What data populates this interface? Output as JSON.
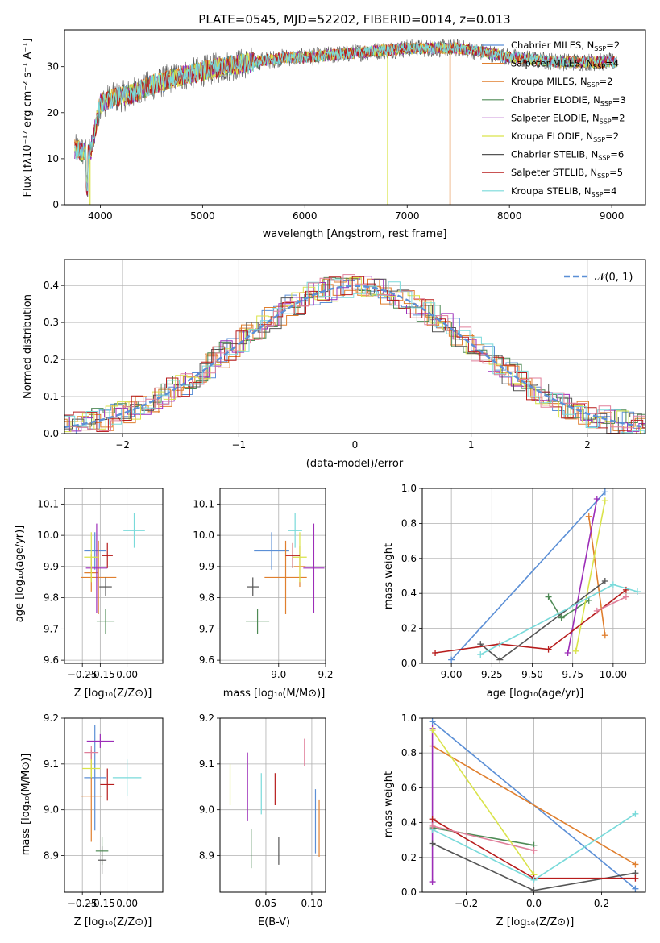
{
  "title": "PLATE=0545, MJD=52202, FIBERID=0014, z=0.013",
  "legend": [
    {
      "label": "Chabrier MILES, N",
      "sub": "SSP",
      "val": "=2",
      "color": "#5b8fd6"
    },
    {
      "label": "Salpeter MILES, N",
      "sub": "SSP",
      "val": "=4",
      "color": "#e07f2e"
    },
    {
      "label": "Kroupa MILES, N",
      "sub": "SSP",
      "val": "=2",
      "color": "#e07f2e"
    },
    {
      "label": "Chabrier ELODIE, N",
      "sub": "SSP",
      "val": "=3",
      "color": "#4e8a55"
    },
    {
      "label": "Salpeter ELODIE, N",
      "sub": "SSP",
      "val": "=2",
      "color": "#9c2db8"
    },
    {
      "label": "Kroupa ELODIE, N",
      "sub": "SSP",
      "val": "=2",
      "color": "#d9e34a"
    },
    {
      "label": "Chabrier STELIB, N",
      "sub": "SSP",
      "val": "=6",
      "color": "#555555"
    },
    {
      "label": "Salpeter STELIB, N",
      "sub": "SSP",
      "val": "=5",
      "color": "#b71c1c"
    },
    {
      "label": "Kroupa STELIB, N",
      "sub": "SSP",
      "val": "=4",
      "color": "#79dada"
    }
  ],
  "labels": {
    "p1_x": "wavelength [Angstrom, rest frame]",
    "p1_y": "Flux [fλ10⁻¹⁷ erg cm⁻² s⁻¹ A⁻¹]",
    "p2_x": "(data-model)/error",
    "p2_y": "Normed distribution",
    "p2_legend": "𝒩(0, 1)",
    "p3_x": "Z [log₁₀(Z/Z⊙)]",
    "p3_y": "age  [log₁₀(age/yr)]",
    "p4_x": "mass [log₁₀(M/M⊙)]",
    "p5_x": "age  [log₁₀(age/yr)]",
    "p5_y": "mass weight",
    "p6_x": "Z [log₁₀(Z/Z⊙)]",
    "p6_y": "mass [log₁₀(M/M⊙)]",
    "p7_x": "E(B-V)",
    "p8_x": "Z [log₁₀(Z/Z⊙)]",
    "p8_y": "mass weight"
  },
  "chart_data": [
    {
      "id": "spectrum",
      "type": "line",
      "xlim": [
        3650,
        9330
      ],
      "ylim": [
        0,
        38
      ],
      "xticks": [
        "4000",
        "5000",
        "6000",
        "7000",
        "8000",
        "9000"
      ],
      "yticks": [
        "0",
        "10",
        "20",
        "30"
      ],
      "anchors_x": [
        3750,
        3900,
        4000,
        4100,
        4300,
        4500,
        4800,
        5000,
        5200,
        5500,
        5800,
        6000,
        6500,
        7000,
        7500,
        7800,
        8000,
        8500,
        9050
      ],
      "anchors_y": [
        12,
        11,
        22,
        23,
        24,
        26,
        28,
        29,
        30,
        31,
        32,
        32,
        33,
        34,
        34,
        33,
        32,
        31,
        31
      ]
    },
    {
      "id": "residuals",
      "type": "line",
      "xlim": [
        -2.5,
        2.5
      ],
      "ylim": [
        0,
        0.47
      ],
      "xticks": [
        "−2",
        "−1",
        "0",
        "1",
        "2"
      ],
      "yticks": [
        "0.0",
        "0.1",
        "0.2",
        "0.3",
        "0.4"
      ],
      "gauss_label": "𝒩(0, 1)"
    },
    {
      "id": "age_vs_Z",
      "type": "scatter",
      "xlim": [
        -0.35,
        0.2
      ],
      "ylim": [
        9.59,
        10.15
      ],
      "xticks": [
        "−0.25",
        "−0.15",
        "0.00"
      ],
      "yticks": [
        "9.6",
        "9.7",
        "9.8",
        "9.9",
        "10.0",
        "10.1"
      ],
      "points": [
        {
          "x": -0.18,
          "xe": 0.12,
          "y": 9.95,
          "ye": 0.12,
          "color": "#5b8fd6"
        },
        {
          "x": -0.16,
          "xe": 0.2,
          "y": 9.865,
          "ye": 0.235,
          "color": "#e07f2e"
        },
        {
          "x": -0.2,
          "xe": 0.08,
          "y": 9.88,
          "ye": 0.12,
          "color": "#e07f2e"
        },
        {
          "x": -0.12,
          "xe": 0.1,
          "y": 9.725,
          "ye": 0.08,
          "color": "#4e8a55"
        },
        {
          "x": -0.17,
          "xe": 0.12,
          "y": 9.895,
          "ye": 0.285,
          "color": "#9c2db8"
        },
        {
          "x": -0.2,
          "xe": 0.08,
          "y": 9.93,
          "ye": 0.16,
          "color": "#d9e34a"
        },
        {
          "x": -0.12,
          "xe": 0.07,
          "y": 9.835,
          "ye": 0.06,
          "color": "#555555"
        },
        {
          "x": -0.11,
          "xe": 0.06,
          "y": 9.935,
          "ye": 0.08,
          "color": "#b71c1c"
        },
        {
          "x": 0.04,
          "xe": 0.12,
          "y": 10.015,
          "ye": 0.11,
          "color": "#79dada"
        }
      ]
    },
    {
      "id": "age_vs_mass",
      "type": "scatter",
      "xlim": [
        8.75,
        9.2
      ],
      "ylim": [
        9.59,
        10.15
      ],
      "xticks": [
        "9.0",
        "9.2"
      ],
      "yticks": [
        "9.6",
        "9.7",
        "9.8",
        "9.9",
        "10.0",
        "10.1"
      ],
      "points": [
        {
          "x": 8.97,
          "xe": 0.15,
          "y": 9.95,
          "ye": 0.12,
          "color": "#5b8fd6"
        },
        {
          "x": 9.03,
          "xe": 0.18,
          "y": 9.865,
          "ye": 0.235,
          "color": "#e07f2e"
        },
        {
          "x": 9.09,
          "xe": 0.05,
          "y": 9.9,
          "ye": 0.13,
          "color": "#e07f2e"
        },
        {
          "x": 8.91,
          "xe": 0.1,
          "y": 9.725,
          "ye": 0.08,
          "color": "#4e8a55"
        },
        {
          "x": 9.15,
          "xe": 0.09,
          "y": 9.895,
          "ye": 0.285,
          "color": "#9c2db8"
        },
        {
          "x": 9.09,
          "xe": 0.06,
          "y": 9.93,
          "ye": 0.16,
          "color": "#d9e34a"
        },
        {
          "x": 8.89,
          "xe": 0.05,
          "y": 9.835,
          "ye": 0.06,
          "color": "#555555"
        },
        {
          "x": 9.06,
          "xe": 0.06,
          "y": 9.935,
          "ye": 0.08,
          "color": "#b71c1c"
        },
        {
          "x": 9.07,
          "xe": 0.06,
          "y": 10.015,
          "ye": 0.11,
          "color": "#79dada"
        }
      ]
    },
    {
      "id": "weight_vs_age",
      "type": "line",
      "xlim": [
        8.82,
        10.2
      ],
      "ylim": [
        0,
        1
      ],
      "xticks": [
        "9.00",
        "9.25",
        "9.50",
        "9.75",
        "10.00"
      ],
      "yticks": [
        "0.0",
        "0.2",
        "0.4",
        "0.6",
        "0.8",
        "1.0"
      ],
      "series": [
        {
          "color": "#5b8fd6",
          "x": [
            9.0,
            9.95
          ],
          "y": [
            0.02,
            0.98
          ]
        },
        {
          "color": "#e07f2e",
          "x": [
            9.85,
            9.95
          ],
          "y": [
            0.84,
            0.16
          ]
        },
        {
          "color": "#4e8a55",
          "x": [
            9.6,
            9.68,
            9.85
          ],
          "y": [
            0.38,
            0.26,
            0.36
          ]
        },
        {
          "color": "#9c2db8",
          "x": [
            9.72,
            9.9
          ],
          "y": [
            0.06,
            0.94
          ]
        },
        {
          "color": "#d9e34a",
          "x": [
            9.77,
            9.95
          ],
          "y": [
            0.07,
            0.93
          ]
        },
        {
          "color": "#555555",
          "x": [
            9.18,
            9.3,
            9.95
          ],
          "y": [
            0.11,
            0.02,
            0.47
          ]
        },
        {
          "color": "#b71c1c",
          "x": [
            8.9,
            9.3,
            9.6,
            10.08
          ],
          "y": [
            0.06,
            0.11,
            0.08,
            0.42
          ]
        },
        {
          "color": "#79dada",
          "x": [
            9.18,
            10.0,
            10.15
          ],
          "y": [
            0.05,
            0.45,
            0.41
          ]
        },
        {
          "color": "#e07f9a",
          "x": [
            9.9,
            10.08
          ],
          "y": [
            0.3,
            0.38
          ]
        }
      ]
    },
    {
      "id": "mass_vs_Z",
      "type": "scatter",
      "xlim": [
        -0.35,
        0.2
      ],
      "ylim": [
        8.82,
        9.2
      ],
      "xticks": [
        "−0.25",
        "−0.15",
        "0.00"
      ],
      "yticks": [
        "8.9",
        "9.0",
        "9.1",
        "9.2"
      ],
      "points": [
        {
          "x": -0.18,
          "xe": 0.12,
          "y": 9.07,
          "ye": 0.23,
          "color": "#5b8fd6"
        },
        {
          "x": -0.2,
          "xe": 0.12,
          "y": 9.03,
          "ye": 0.2,
          "color": "#e07f2e"
        },
        {
          "x": -0.11,
          "xe": 0.08,
          "y": 9.055,
          "ye": 0.07,
          "color": "#b71c1c"
        },
        {
          "x": -0.14,
          "xe": 0.07,
          "y": 8.91,
          "ye": 0.06,
          "color": "#4e8a55"
        },
        {
          "x": -0.15,
          "xe": 0.15,
          "y": 9.15,
          "ye": 0.03,
          "color": "#9c2db8"
        },
        {
          "x": -0.2,
          "xe": 0.1,
          "y": 9.09,
          "ye": 0.04,
          "color": "#d9e34a"
        },
        {
          "x": -0.14,
          "xe": 0.05,
          "y": 8.89,
          "ye": 0.06,
          "color": "#555555"
        },
        {
          "x": -0.2,
          "xe": 0.08,
          "y": 9.125,
          "ye": 0.03,
          "color": "#e07f9a"
        },
        {
          "x": 0.0,
          "xe": 0.16,
          "y": 9.07,
          "ye": 0.08,
          "color": "#79dada"
        }
      ]
    },
    {
      "id": "mass_vs_EBV",
      "type": "scatter",
      "xlim": [
        0.0,
        0.115
      ],
      "ylim": [
        8.82,
        9.2
      ],
      "xticks": [
        "0.05",
        "0.10"
      ],
      "yticks": [
        "8.9",
        "9.0",
        "9.1",
        "9.2"
      ],
      "points": [
        {
          "x": 0.011,
          "y": 9.055,
          "ye": 0.09,
          "color": "#d9e34a"
        },
        {
          "x": 0.03,
          "y": 9.05,
          "ye": 0.15,
          "color": "#9c2db8"
        },
        {
          "x": 0.034,
          "y": 8.915,
          "ye": 0.085,
          "color": "#4e8a55"
        },
        {
          "x": 0.045,
          "y": 9.035,
          "ye": 0.09,
          "color": "#79dada"
        },
        {
          "x": 0.06,
          "y": 9.045,
          "ye": 0.07,
          "color": "#b71c1c"
        },
        {
          "x": 0.064,
          "y": 8.91,
          "ye": 0.06,
          "color": "#555555"
        },
        {
          "x": 0.092,
          "y": 9.125,
          "ye": 0.06,
          "color": "#e07f9a"
        },
        {
          "x": 0.104,
          "y": 8.975,
          "ye": 0.14,
          "color": "#5b8fd6"
        },
        {
          "x": 0.108,
          "y": 8.96,
          "ye": 0.125,
          "color": "#e07f2e"
        }
      ]
    },
    {
      "id": "weight_vs_Z",
      "type": "line",
      "xlim": [
        -0.33,
        0.33
      ],
      "ylim": [
        0,
        1
      ],
      "xticks": [
        "−0.2",
        "0.0",
        "0.2"
      ],
      "yticks": [
        "0.0",
        "0.2",
        "0.4",
        "0.6",
        "0.8",
        "1.0"
      ],
      "series": [
        {
          "color": "#5b8fd6",
          "x": [
            -0.3,
            0.3
          ],
          "y": [
            0.98,
            0.02
          ]
        },
        {
          "color": "#e07f2e",
          "x": [
            -0.3,
            0.3
          ],
          "y": [
            0.84,
            0.16
          ]
        },
        {
          "color": "#4e8a55",
          "x": [
            -0.3,
            0.0
          ],
          "y": [
            0.37,
            0.27
          ]
        },
        {
          "color": "#9c2db8",
          "x": [
            -0.3,
            -0.3
          ],
          "y": [
            0.06,
            0.94
          ]
        },
        {
          "color": "#d9e34a",
          "x": [
            -0.3,
            0.0
          ],
          "y": [
            0.93,
            0.1
          ]
        },
        {
          "color": "#555555",
          "x": [
            -0.3,
            0.0,
            0.3
          ],
          "y": [
            0.28,
            0.01,
            0.11
          ]
        },
        {
          "color": "#b71c1c",
          "x": [
            -0.3,
            0.0,
            0.3
          ],
          "y": [
            0.42,
            0.08,
            0.08
          ]
        },
        {
          "color": "#79dada",
          "x": [
            -0.3,
            0.0,
            0.3
          ],
          "y": [
            0.36,
            0.07,
            0.45
          ]
        },
        {
          "color": "#e07f9a",
          "x": [
            -0.3,
            0.0
          ],
          "y": [
            0.38,
            0.24
          ]
        }
      ]
    }
  ]
}
